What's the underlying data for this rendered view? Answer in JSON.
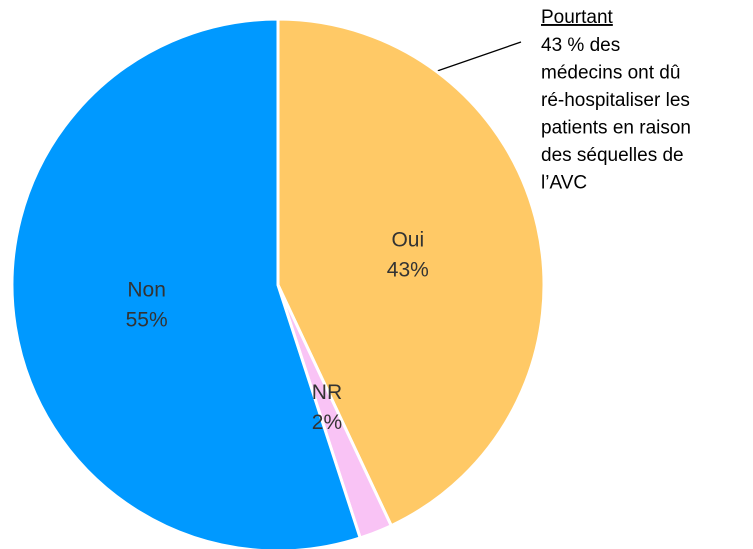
{
  "chart_data": {
    "type": "pie",
    "categories": [
      "Oui",
      "NR",
      "Non"
    ],
    "values": [
      43,
      2,
      55
    ],
    "value_labels": [
      "43%",
      "2%",
      "55%"
    ],
    "colors": [
      "#FFC966",
      "#F9C3F5",
      "#0099FF"
    ],
    "annotation": {
      "title": "Pourtant",
      "lines": [
        "43 % des",
        "médecins ont dû",
        "ré-hospitaliser les",
        "patients en raison",
        "des séquelles de",
        "l’AVC"
      ]
    }
  }
}
